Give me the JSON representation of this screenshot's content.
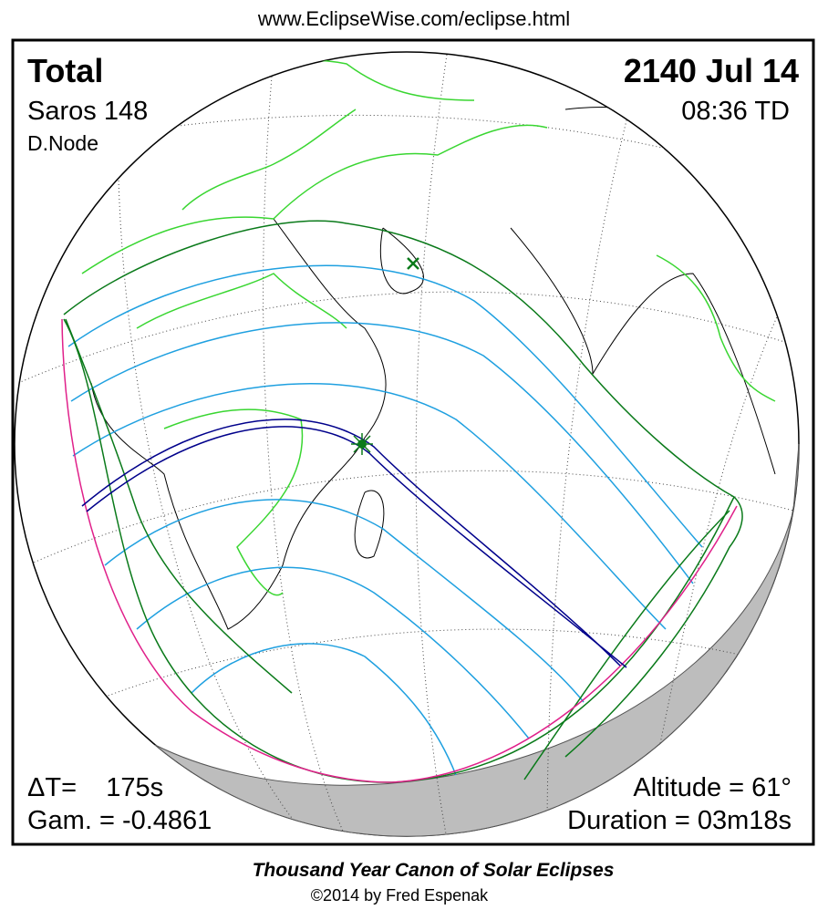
{
  "header": {
    "url": "www.EclipseWise.com/eclipse.html"
  },
  "map": {
    "type_label": "Total",
    "saros": "Saros 148",
    "node": "D.Node",
    "date": "2140 Jul 14",
    "time": "08:36 TD",
    "delta_t": "ΔT=    175s",
    "gamma": "Gam. = -0.4861",
    "altitude": "Altitude = 61°",
    "duration": "Duration = 03m18s"
  },
  "footer": {
    "title": "Thousand Year Canon of Solar Eclipses",
    "copyright": "©2014 by Fred Espenak"
  }
}
